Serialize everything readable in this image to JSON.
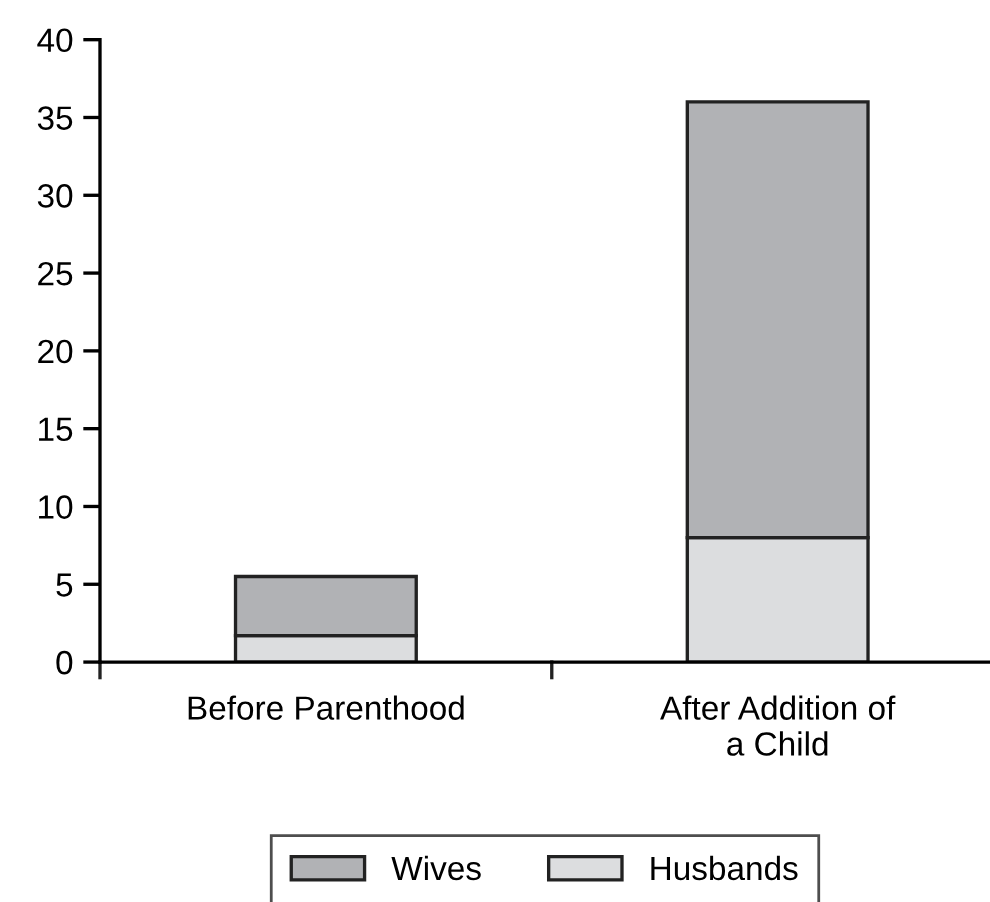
{
  "chart_data": {
    "type": "bar",
    "stacked": true,
    "categories": [
      "Before Parenthood",
      "After Addition of\na Child"
    ],
    "series": [
      {
        "name": "Husbands",
        "color": "#dcdddf",
        "values": [
          1.7,
          8
        ]
      },
      {
        "name": "Wives",
        "color": "#b1b2b5",
        "values": [
          3.8,
          28
        ]
      }
    ],
    "ylim": [
      0,
      40
    ],
    "yticks": [
      0,
      5,
      10,
      15,
      20,
      25,
      30,
      35,
      40
    ],
    "grid": false,
    "legend": "bottom"
  }
}
